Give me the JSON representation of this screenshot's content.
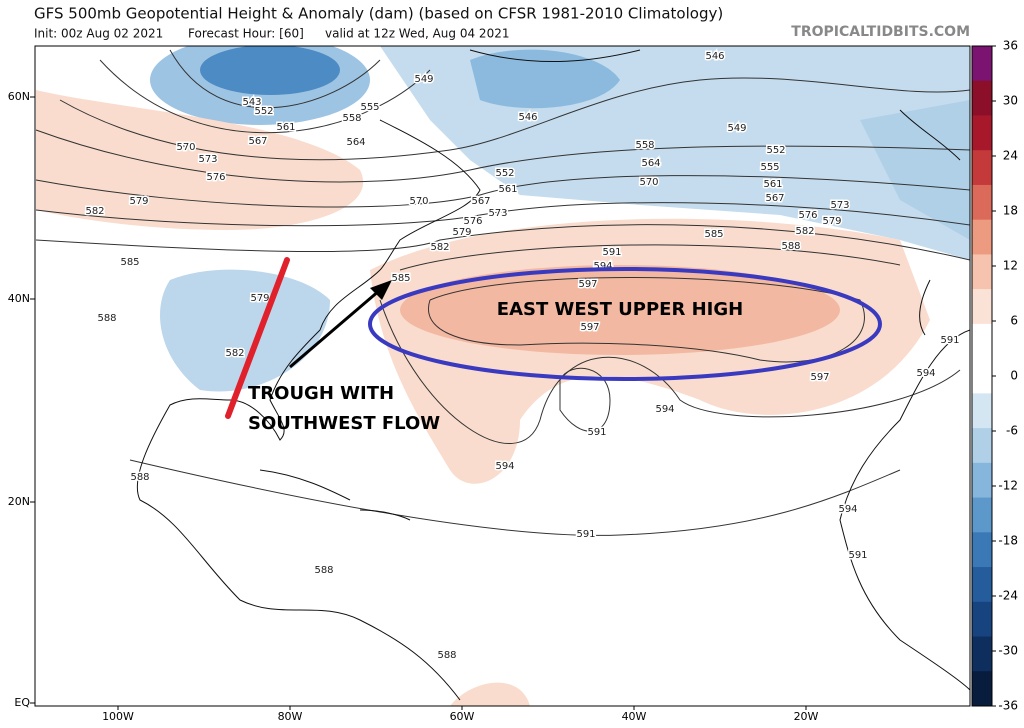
{
  "header": {
    "title": "GFS 500mb Geopotential Height & Anomaly (dam) (based on CFSR 1981-2010 Climatology)",
    "init": "Init: 00z Aug 02 2021",
    "forecast_hour": "Forecast Hour: [60]",
    "valid": "valid at 12z Wed, Aug 04 2021",
    "site": "TROPICALTIDBITS.COM"
  },
  "map": {
    "lat_labels": [
      "60N",
      "40N",
      "20N",
      "EQ"
    ],
    "lon_labels": [
      "100W",
      "80W",
      "60W",
      "40W",
      "20W"
    ],
    "contour_labels": [
      "546",
      "549",
      "546",
      "543",
      "552",
      "561",
      "555",
      "558",
      "564",
      "567",
      "570",
      "573",
      "576",
      "579",
      "582",
      "549",
      "558",
      "552",
      "564",
      "555",
      "552",
      "561",
      "570",
      "561",
      "567",
      "570",
      "567",
      "573",
      "576",
      "579",
      "582",
      "573",
      "576",
      "579",
      "582",
      "585",
      "588",
      "591",
      "594",
      "597",
      "585",
      "585",
      "588",
      "579",
      "582",
      "597",
      "597",
      "594",
      "591",
      "594",
      "591",
      "594",
      "588",
      "591",
      "594",
      "591",
      "588",
      "588"
    ]
  },
  "annotations": {
    "high": "EAST WEST UPPER HIGH",
    "trough": [
      "TROUGH WITH",
      "SOUTHWEST FLOW"
    ]
  },
  "colorbar": {
    "ticks": [
      36,
      30,
      24,
      18,
      12,
      6,
      0,
      -6,
      -12,
      -18,
      -24,
      -30,
      -36
    ],
    "colors": [
      "#7b1470",
      "#8c0f2a",
      "#a8182b",
      "#c43a3a",
      "#dc6a5a",
      "#ec9a80",
      "#f6c4ae",
      "#fbe2d6",
      "#ffffff",
      "#ffffff",
      "#d4e6f2",
      "#b0d0e8",
      "#86b6db",
      "#5d98cb",
      "#3a78b6",
      "#255c9c",
      "#17447e",
      "#0e2f5e",
      "#081c3e"
    ]
  }
}
